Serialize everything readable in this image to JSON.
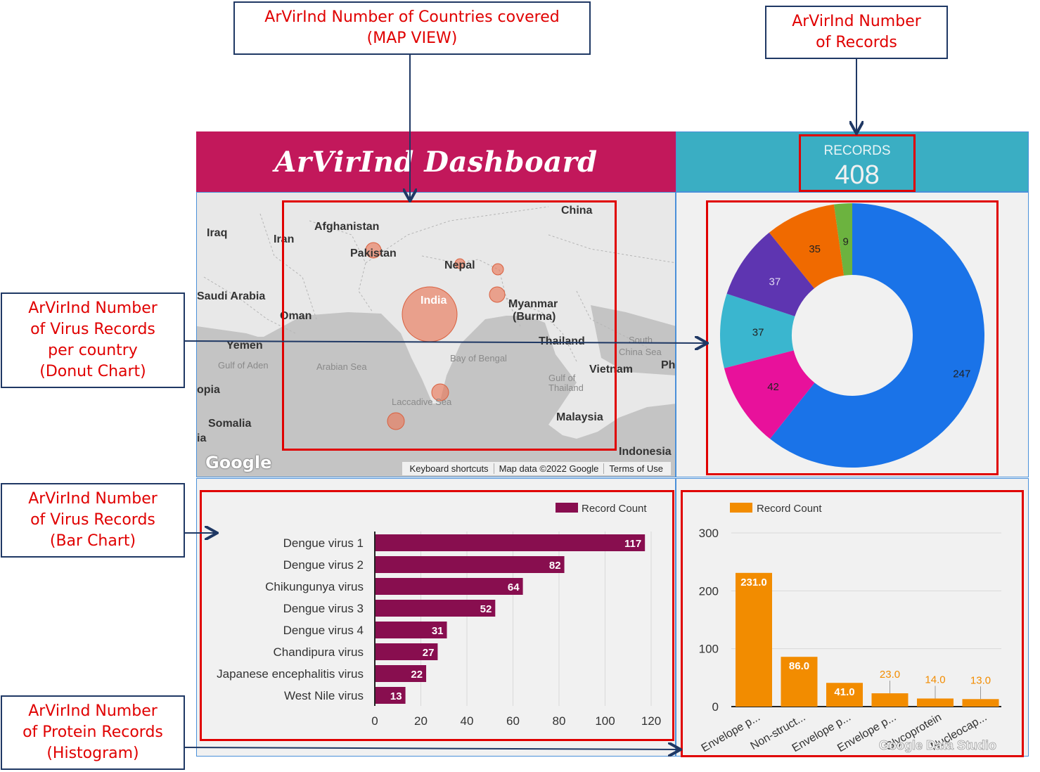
{
  "callouts": {
    "map": [
      "ArVirInd Number of  Countries covered",
      "(MAP VIEW)"
    ],
    "records": [
      "ArVirInd Number",
      "of Records"
    ],
    "donut": [
      "ArVirInd Number",
      "of Virus Records",
      "per country",
      "(Donut Chart)"
    ],
    "bar": [
      "ArVirInd Number",
      "of Virus Records",
      "(Bar Chart)"
    ],
    "hist": [
      "ArVirInd Number",
      "of Protein Records",
      "(Histogram)"
    ]
  },
  "dashboard": {
    "title": "ArVirInd Dashboard",
    "records_label": "RECORDS",
    "records_value": "408",
    "header_color": "#c2185b",
    "records_color": "#3aaec3"
  },
  "map": {
    "labels": [
      "China",
      "Afghanistan",
      "Iraq",
      "Iran",
      "Pakistan",
      "Nepal",
      "Saudi Arabia",
      "Oman",
      "India",
      "Myanmar",
      "(Burma)",
      "Yemen",
      "Thailand",
      "Gulf of Aden",
      "Arabian Sea",
      "Bay of Bengal",
      "South",
      "China Sea",
      "Vietnam",
      "Gulf of",
      "Thailand",
      "opia",
      "Laccadive Sea",
      "Somalia",
      "Malaysia",
      "Indonesia",
      "ia",
      "Ph"
    ],
    "logo": "Google",
    "footer": [
      "Keyboard shortcuts",
      "Map data ©2022 Google",
      "Terms of Use"
    ]
  },
  "chart_data": [
    {
      "type": "pie",
      "variant": "donut",
      "values": [
        247,
        42,
        37,
        37,
        35,
        9
      ],
      "colors": [
        "#1a73e8",
        "#e8119b",
        "#3ab6cf",
        "#5e35b1",
        "#f06a00",
        "#6cb33f"
      ]
    },
    {
      "type": "bar",
      "orientation": "horizontal",
      "legend": "Record Count",
      "categories": [
        "Dengue virus 1",
        "Dengue virus 2",
        "Chikungunya virus",
        "Dengue virus 3",
        "Dengue virus 4",
        "Chandipura virus",
        "Japanese encephalitis virus",
        "West Nile virus"
      ],
      "values": [
        117,
        82,
        64,
        52,
        31,
        27,
        22,
        13
      ],
      "xlim": [
        0,
        120
      ],
      "xticks": [
        "0",
        "20",
        "40",
        "60",
        "80",
        "100",
        "120"
      ],
      "color": "#880e4f"
    },
    {
      "type": "bar",
      "legend": "Record Count",
      "categories": [
        "Envelope p...",
        "Non-struct...",
        "Envelope p...",
        "Envelope p...",
        "Glycoprotein",
        "Nucleocap..."
      ],
      "values": [
        231.0,
        86.0,
        41.0,
        23.0,
        14.0,
        13.0
      ],
      "value_labels": [
        "231.0",
        "86.0",
        "41.0",
        "23.0",
        "14.0",
        "13.0"
      ],
      "ylim": [
        0,
        300
      ],
      "yticks": [
        "0",
        "100",
        "200",
        "300"
      ],
      "color": "#f28c00",
      "watermark": "Google Data Studio"
    }
  ]
}
